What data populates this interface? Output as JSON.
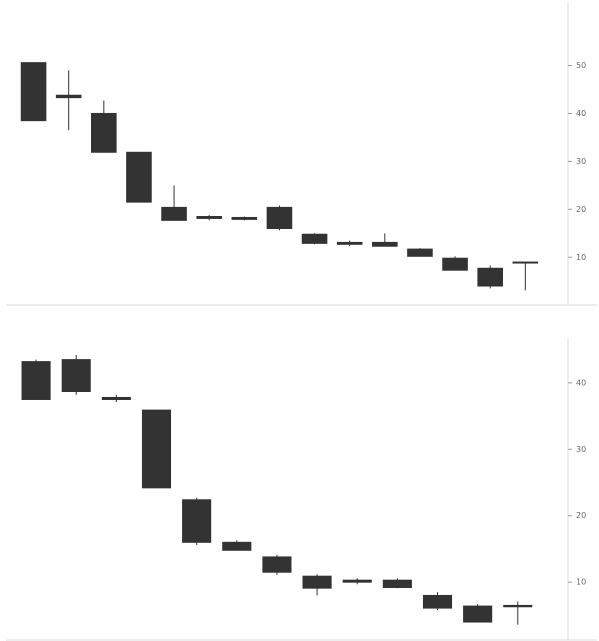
{
  "chart_data": [
    {
      "type": "candlestick",
      "categories": [
        null,
        null,
        null,
        null,
        null,
        null,
        null,
        null,
        null,
        null,
        null,
        null,
        null,
        null,
        null
      ],
      "open": [
        50.6,
        43.8,
        40,
        31.9,
        20.4,
        18.5,
        18.3,
        20.4,
        14.8,
        13.1,
        13.1,
        11.7,
        9.8,
        7.7,
        8.8
      ],
      "high": [
        50.6,
        49,
        42.7,
        31.9,
        25,
        18.8,
        18.5,
        20.8,
        15,
        13.5,
        15,
        11.9,
        10.2,
        8.3,
        9
      ],
      "low": [
        38.5,
        36.5,
        31.9,
        21.5,
        17.7,
        17.7,
        17.7,
        15.6,
        12.7,
        12.3,
        12.3,
        10.2,
        7.3,
        3.5,
        3.1
      ],
      "close": [
        38.5,
        43.3,
        31.9,
        21.5,
        17.7,
        18.1,
        17.9,
        16,
        12.9,
        12.7,
        12.3,
        10.2,
        7.3,
        4,
        9
      ],
      "color": "#333333",
      "ylim": [
        1.5,
        62
      ],
      "yticks": [
        10,
        20,
        30,
        40,
        50
      ]
    },
    {
      "type": "candlestick",
      "categories": [
        null,
        null,
        null,
        null,
        null,
        null,
        null,
        null,
        null,
        null,
        null,
        null,
        null
      ],
      "open": [
        43.2,
        43.5,
        37.8,
        35.9,
        22.4,
        16,
        13.8,
        10.9,
        10.3,
        10.3,
        8,
        6.4,
        6.5
      ],
      "high": [
        43.5,
        44.2,
        38.2,
        35.9,
        22.7,
        16.3,
        14.1,
        11.2,
        10.6,
        10.6,
        8.5,
        6.7,
        7.1
      ],
      "low": [
        37.5,
        38.2,
        37.1,
        24.2,
        15.6,
        14.8,
        11.1,
        8,
        9.7,
        9.1,
        5.8,
        4,
        3.6
      ],
      "close": [
        37.5,
        38.7,
        37.5,
        24.2,
        16,
        14.8,
        11.5,
        9.1,
        10,
        9.2,
        6.1,
        4,
        6.3
      ],
      "color": "#333333",
      "ylim": [
        2.5,
        45.7
      ],
      "yticks": [
        10,
        20,
        30,
        40
      ]
    }
  ]
}
